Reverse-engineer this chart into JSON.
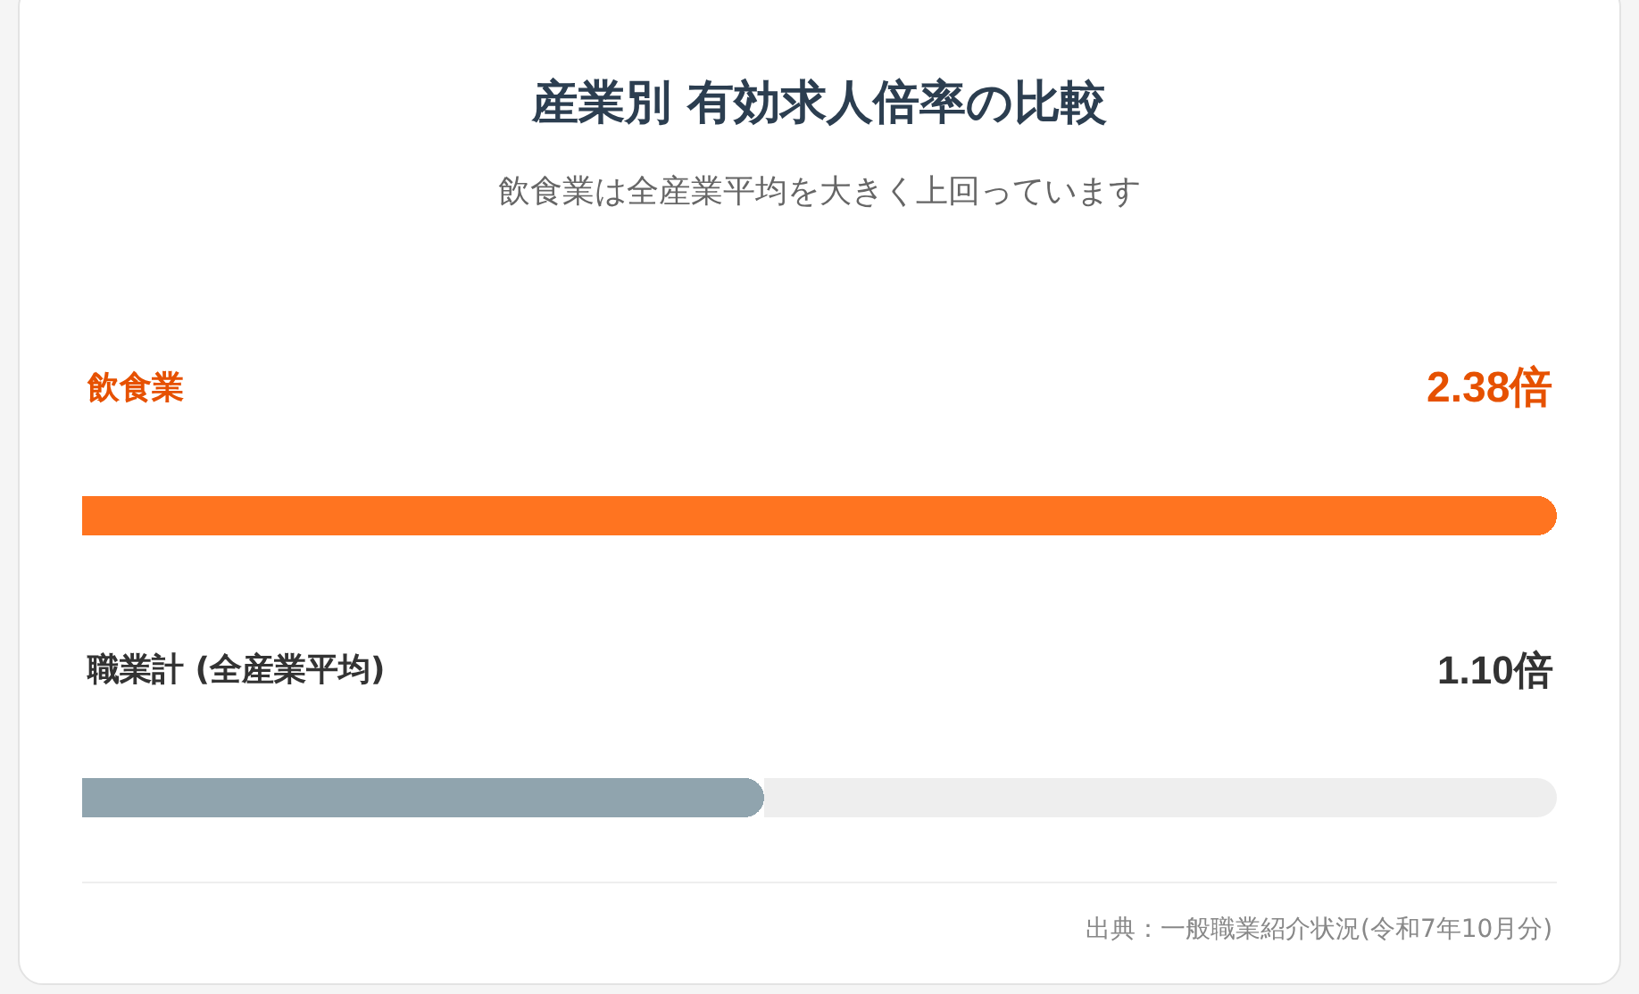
{
  "chart_data": {
    "type": "bar",
    "orientation": "horizontal",
    "title": "産業別 有効求人倍率の比較",
    "subtitle": "飲食業は全産業平均を大きく上回っています",
    "categories": [
      "飲食業",
      "職業計 (全産業平均)"
    ],
    "values": [
      2.38,
      1.1
    ],
    "colors": [
      "#ff7420",
      "#90a4ae"
    ],
    "value_labels": [
      "2.38倍",
      "1.10倍"
    ],
    "xlim": [
      0,
      2.38
    ],
    "grid": false,
    "legend": false,
    "tick_labels": false,
    "annotations": [
      "出典：一般職業紹介状況(令和7年10月分)"
    ]
  }
}
